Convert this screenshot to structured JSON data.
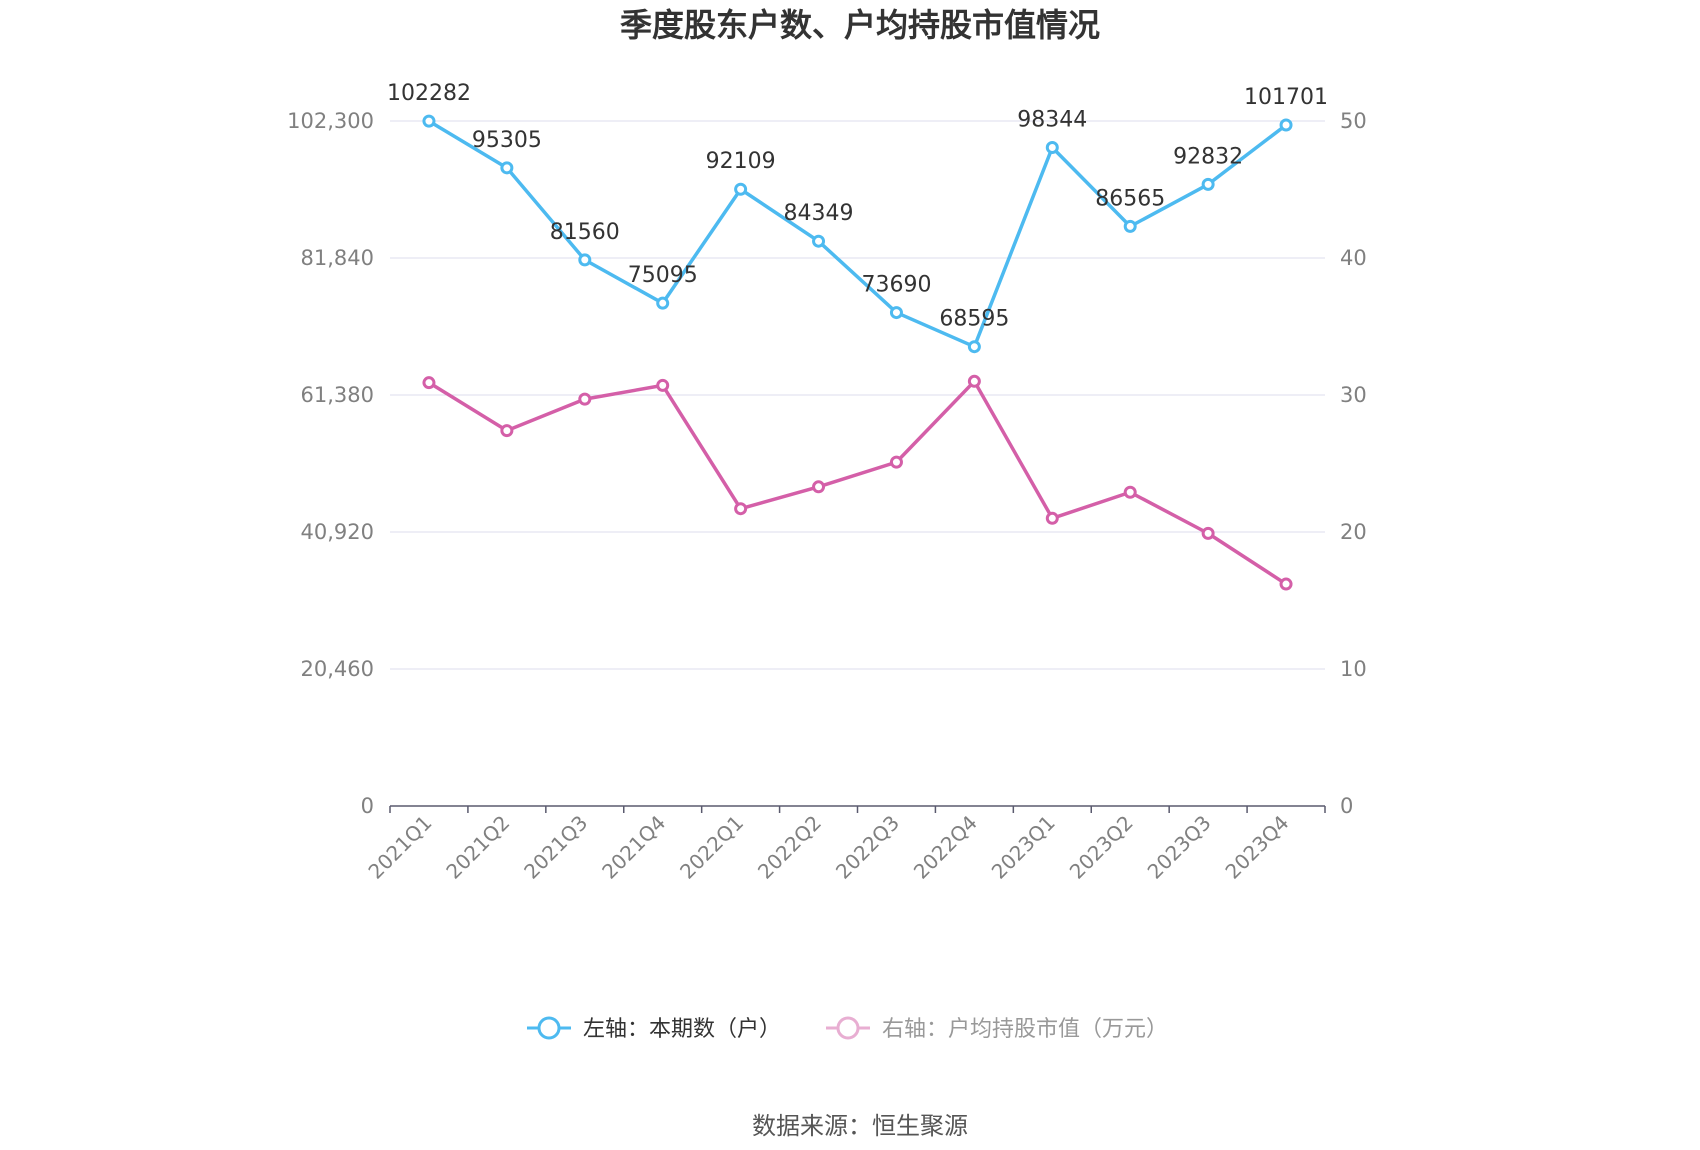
{
  "chart_data": {
    "type": "line",
    "title": "季度股东户数、户均持股市值情况",
    "categories": [
      "2021Q1",
      "2021Q2",
      "2021Q3",
      "2021Q4",
      "2022Q1",
      "2022Q2",
      "2022Q3",
      "2022Q4",
      "2023Q1",
      "2023Q2",
      "2023Q3",
      "2023Q4"
    ],
    "left_axis": {
      "ylim": [
        0,
        102300
      ],
      "ticks": [
        0,
        20460,
        40920,
        61380,
        81840,
        102300
      ],
      "tick_labels": [
        "0",
        "20,460",
        "40,920",
        "61,380",
        "81,840",
        "102,300"
      ]
    },
    "right_axis": {
      "ylim": [
        0,
        50
      ],
      "ticks": [
        0,
        10,
        20,
        30,
        40,
        50
      ],
      "tick_labels": [
        "0",
        "10",
        "20",
        "30",
        "40",
        "50"
      ]
    },
    "series": [
      {
        "name": "左轴：本期数（户）",
        "axis": "left",
        "color": "#4dbaf0",
        "values": [
          102282,
          95305,
          81560,
          75095,
          92109,
          84349,
          73690,
          68595,
          98344,
          86565,
          92832,
          101701
        ],
        "data_labels": [
          "102282",
          "95305",
          "81560",
          "75095",
          "92109",
          "84349",
          "73690",
          "68595",
          "98344",
          "86565",
          "92832",
          "101701"
        ]
      },
      {
        "name": "右轴：户均持股市值（万元）",
        "axis": "right",
        "color": "#d45fa8",
        "values": [
          30.9,
          27.4,
          29.7,
          30.7,
          21.7,
          23.3,
          25.1,
          31.0,
          21.0,
          22.9,
          19.9,
          16.2
        ]
      }
    ],
    "grid": true,
    "legend_position": "bottom-center"
  },
  "source": "数据来源：恒生聚源",
  "colors": {
    "grid": "#dcdcec",
    "axis": "#5a5a6e",
    "legend_inactive": "#e8aed2"
  }
}
